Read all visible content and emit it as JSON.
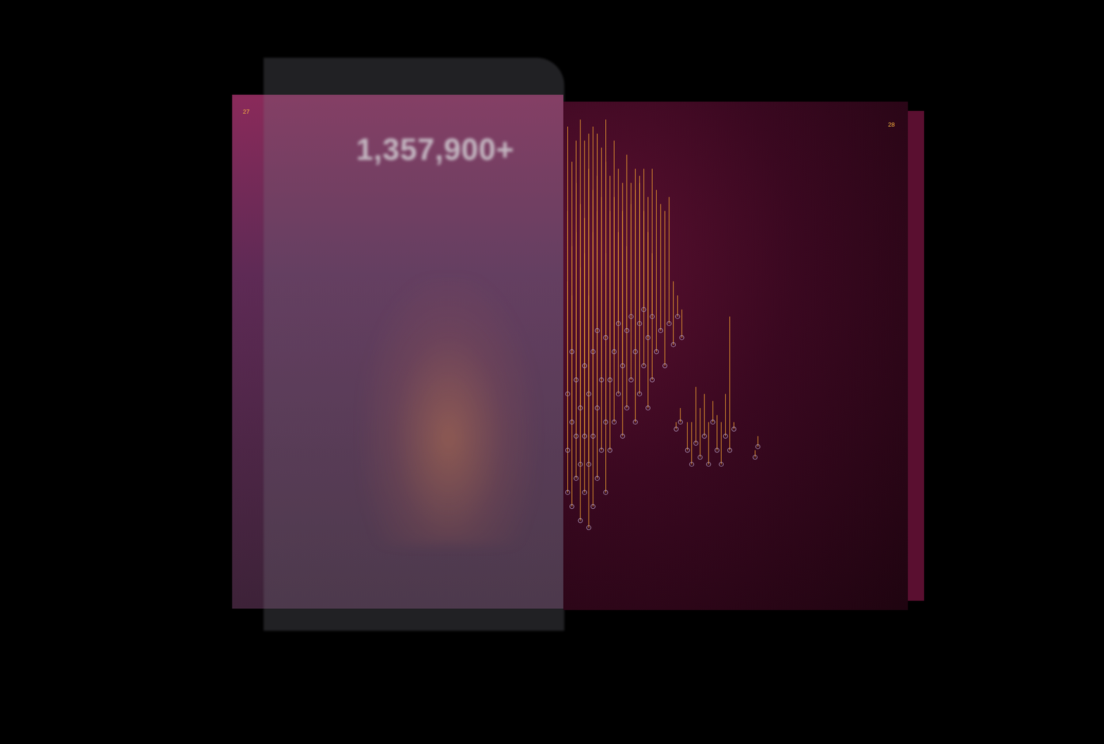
{
  "pages": {
    "left": {
      "number": "27",
      "headline": "1,357,900+"
    },
    "right": {
      "number": "28"
    }
  },
  "chart_data": {
    "type": "lollipop",
    "tick_labels": false,
    "grid": false,
    "color": "#f0a030",
    "marker": "circle-open",
    "xlim": [
      0,
      300
    ],
    "ylim": [
      0,
      620
    ],
    "x": [
      16,
      16,
      16,
      22,
      22,
      22,
      28,
      28,
      28,
      34,
      34,
      34,
      40,
      40,
      40,
      46,
      46,
      46,
      52,
      52,
      52,
      58,
      58,
      58,
      64,
      64,
      70,
      70,
      70,
      76,
      76,
      82,
      82,
      88,
      88,
      94,
      94,
      100,
      100,
      106,
      106,
      112,
      112,
      118,
      118,
      124,
      124,
      130,
      130,
      136,
      136,
      142,
      148,
      154,
      160,
      166,
      172,
      178,
      170,
      176,
      186,
      192,
      198,
      204,
      210,
      216,
      222,
      228,
      234,
      240,
      246,
      252,
      282,
      286
    ],
    "values": [
      60,
      120,
      200,
      40,
      160,
      260,
      80,
      140,
      220,
      20,
      100,
      180,
      60,
      140,
      240,
      10,
      100,
      200,
      40,
      140,
      260,
      80,
      180,
      290,
      120,
      220,
      60,
      160,
      280,
      120,
      220,
      160,
      260,
      200,
      300,
      140,
      240,
      180,
      290,
      220,
      310,
      160,
      260,
      200,
      300,
      240,
      320,
      180,
      280,
      220,
      310,
      260,
      290,
      240,
      300,
      270,
      310,
      280,
      150,
      160,
      120,
      100,
      130,
      110,
      140,
      100,
      160,
      120,
      100,
      140,
      120,
      150,
      110,
      125
    ],
    "line_end": [
      580,
      460,
      360,
      530,
      410,
      340,
      560,
      430,
      500,
      380,
      470,
      590,
      450,
      560,
      400,
      340,
      520,
      570,
      430,
      490,
      580,
      510,
      460,
      570,
      550,
      480,
      400,
      590,
      530,
      460,
      510,
      560,
      480,
      430,
      520,
      500,
      460,
      410,
      540,
      470,
      500,
      520,
      490,
      500,
      510,
      520,
      460,
      480,
      430,
      520,
      400,
      490,
      470,
      460,
      480,
      360,
      340,
      320,
      160,
      180,
      160,
      160,
      210,
      180,
      200,
      160,
      190,
      170,
      160,
      200,
      310,
      160,
      120,
      140
    ]
  }
}
